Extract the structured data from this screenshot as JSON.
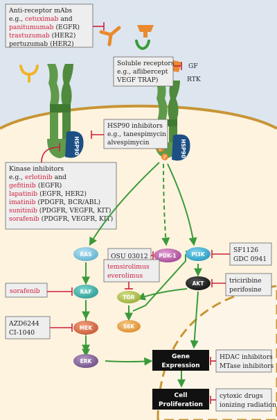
{
  "anti_receptor": {
    "line1": "Anti-receptor mAbs",
    "line2_prefix": "e.g., ",
    "line2_drug": "cetuximab",
    "line2_suffix": " and",
    "line3_drug": "panitumumab",
    "line3_suffix": " (EGFR)",
    "line4_drug": "trastuzumab",
    "line4_suffix": " (HER2)",
    "line5": "pertuzumab (HER2)"
  },
  "soluble": {
    "line1": "Soluble receptors",
    "line2": "e.g., aflibercept",
    "line3": "VEGF TRAP)"
  },
  "receptor_labels": {
    "gf": "GF",
    "rtk": "RTK"
  },
  "hsp90_box": {
    "line1": "HSP90 inhibitors",
    "line2": "e.g., tanespimycin",
    "line3": "alvespimycin"
  },
  "hsp90_label": "HSP90",
  "phospho": "P",
  "kinase": {
    "line1": "Kinase inhibitors",
    "line2_prefix": "e.g., ",
    "line2_drug": "erlotinib",
    "line2_suffix": " and",
    "line3_drug": "gefitinib",
    "line3_suffix": " (EGFR)",
    "line4_drug": "lapatinib",
    "line4_suffix": " (EGFR, HER2)",
    "line5_drug": "imatinib",
    "line5_suffix": " (PDGFR, BCR/ABL)",
    "line6_drug": "sunitinib",
    "line6_suffix": " (PDGFR, VEGFR, KIT)",
    "line7_drug": "sorafenib",
    "line7_suffix": " (PDGFR, VEGFR, KIT)"
  },
  "nodes": {
    "ras": "RAS",
    "pdk1": "PDK-1",
    "pi3k": "PI3K",
    "raf": "RAF",
    "akt": "AKT",
    "tor": "TOR",
    "s6k": "S6K",
    "mek": "MEK",
    "erk": "ERK"
  },
  "inhibitors": {
    "osu": "OSU 03012",
    "sf1126": "SF1126",
    "gdc": "GDC 0941",
    "sorafenib": "sorafenib",
    "temsirolimus": "temsirolimus",
    "everolimus": "everolimus",
    "triciribine": "triciribine",
    "perifosine": "perifosine",
    "azd": "AZD6244",
    "ci": "CI-1040",
    "hdac": "HDAC inhibitors",
    "mtase": "MTase inhibitors",
    "cytoxic": "cytoxic drugs",
    "ionizing": "ionizing radiation"
  },
  "blocks": {
    "gene1": "Gene",
    "gene2": "Expression",
    "cell1": "Cell",
    "cell2": "Proliferation"
  },
  "colors": {
    "cytoplasm": "#fef3de",
    "membrane": "#c79536",
    "outside": "#dde6ef",
    "receptor": "#5e9a4a",
    "hsp90": "#1d4f85",
    "arrow_green": "#3a9a3a",
    "inhibit_red": "#cc1f3c"
  }
}
